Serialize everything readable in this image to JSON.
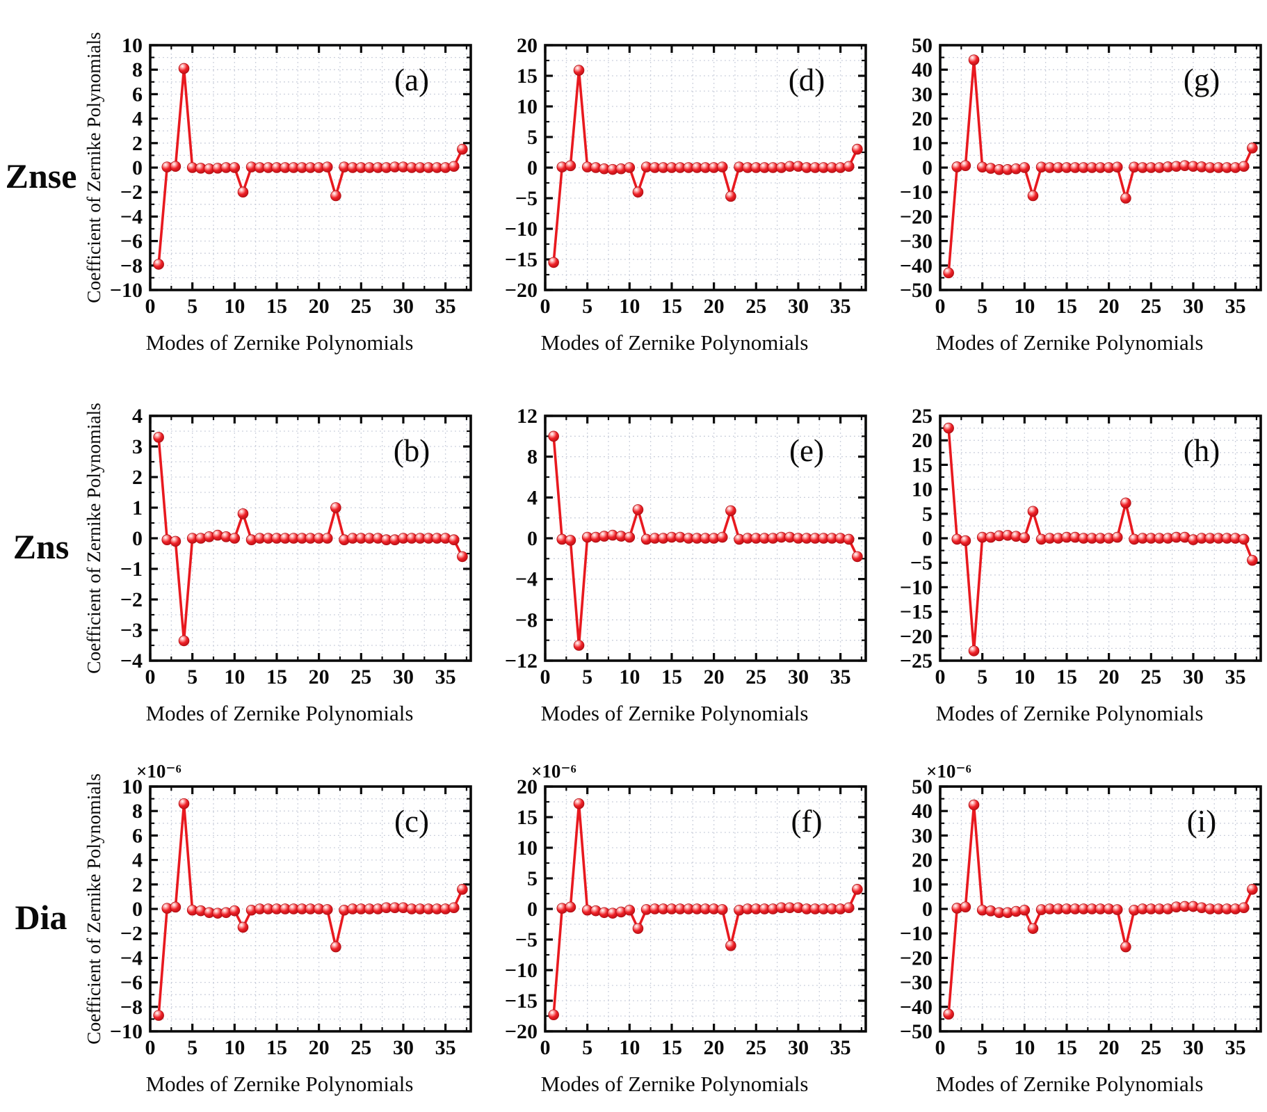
{
  "figure": {
    "xlabel": "Modes of Zernike Polynomials",
    "ylabel": "Coefficient of Zernike Polynomials",
    "row_labels": [
      "Znse",
      "Zns",
      "Dia"
    ],
    "line_color": "#e8191f",
    "grid_color": "#c7ccd9",
    "axis_color": "#0a0a0a",
    "x_axis": {
      "lim": [
        0,
        38
      ],
      "ticks": [
        0,
        5,
        10,
        15,
        20,
        25,
        30,
        35
      ],
      "minor_step": 2.5
    }
  },
  "chart_data": [
    {
      "id": "a",
      "type": "line",
      "row": "Znse",
      "letter": "(a)",
      "ylim": [
        -10,
        10
      ],
      "ytick": 2,
      "multiplier": null,
      "show_ylabel": true,
      "x_start": 1,
      "values": [
        -7.9,
        0.05,
        0.1,
        8.1,
        0,
        -0.05,
        -0.1,
        -0.05,
        0,
        0,
        -2.0,
        0.05,
        0,
        0,
        0,
        0,
        0,
        0,
        0,
        0,
        0.05,
        -2.3,
        0.05,
        0,
        0,
        0,
        0,
        0,
        0.05,
        0.05,
        0,
        0,
        0,
        0,
        0,
        0.1,
        1.5
      ]
    },
    {
      "id": "d",
      "type": "line",
      "row": "Znse",
      "letter": "(d)",
      "ylim": [
        -20,
        20
      ],
      "ytick": 5,
      "multiplier": null,
      "show_ylabel": false,
      "x_start": 1,
      "values": [
        -15.5,
        0.1,
        0.3,
        15.9,
        0.1,
        0,
        -0.2,
        -0.3,
        -0.2,
        0,
        -4.0,
        0.1,
        0,
        0,
        0,
        0,
        0,
        0,
        0,
        0,
        0.1,
        -4.7,
        0.1,
        0,
        0,
        0,
        0,
        0,
        0.2,
        0.2,
        0,
        0,
        0,
        0,
        0,
        0.2,
        3.0
      ]
    },
    {
      "id": "g",
      "type": "line",
      "row": "Znse",
      "letter": "(g)",
      "ylim": [
        -50,
        50
      ],
      "ytick": 10,
      "multiplier": null,
      "show_ylabel": false,
      "x_start": 1,
      "values": [
        -43,
        0.3,
        0.8,
        44,
        0.2,
        -0.3,
        -0.8,
        -0.8,
        -0.5,
        0,
        -11.5,
        0.2,
        0,
        0,
        0,
        0,
        0,
        0,
        0,
        0,
        0.2,
        -12.5,
        0.2,
        0,
        0,
        0,
        0.3,
        0.5,
        0.8,
        0.5,
        0.3,
        0,
        0,
        0,
        0,
        0.5,
        8
      ]
    },
    {
      "id": "b",
      "type": "line",
      "row": "Zns",
      "letter": "(b)",
      "ylim": [
        -4,
        4
      ],
      "ytick": 1,
      "multiplier": null,
      "show_ylabel": true,
      "x_start": 1,
      "values": [
        3.3,
        -0.05,
        -0.1,
        -3.35,
        0,
        0,
        0.05,
        0.1,
        0.05,
        0,
        0.8,
        -0.05,
        0,
        0,
        0,
        0,
        0,
        0,
        0,
        0,
        0,
        1.0,
        -0.05,
        0,
        0,
        0,
        0,
        -0.05,
        -0.05,
        0,
        0,
        0,
        0,
        0,
        0,
        -0.05,
        -0.6
      ]
    },
    {
      "id": "e",
      "type": "line",
      "row": "Zns",
      "letter": "(e)",
      "ylim": [
        -12,
        12
      ],
      "ytick": 4,
      "multiplier": null,
      "show_ylabel": false,
      "x_start": 1,
      "values": [
        10.0,
        -0.1,
        -0.2,
        -10.5,
        0.1,
        0.1,
        0.2,
        0.3,
        0.2,
        0.1,
        2.8,
        -0.1,
        0,
        0,
        0.1,
        0.1,
        0,
        0,
        0,
        0,
        0.1,
        2.7,
        -0.1,
        0,
        0,
        0,
        0,
        0.1,
        0.1,
        0,
        0,
        0,
        0,
        0,
        0,
        -0.1,
        -1.8
      ]
    },
    {
      "id": "h",
      "type": "line",
      "row": "Zns",
      "letter": "(h)",
      "ylim": [
        -25,
        25
      ],
      "ytick": 5,
      "multiplier": null,
      "show_ylabel": false,
      "x_start": 1,
      "values": [
        22.5,
        -0.2,
        -0.5,
        -23,
        0.2,
        0.2,
        0.5,
        0.6,
        0.4,
        0.1,
        5.5,
        -0.2,
        0,
        0,
        0.2,
        0.2,
        0,
        0,
        0,
        0,
        0.2,
        7.2,
        -0.2,
        0,
        0,
        0,
        0,
        0.2,
        0.2,
        -0.3,
        0,
        0,
        0,
        0,
        0,
        -0.2,
        -4.5
      ]
    },
    {
      "id": "c",
      "type": "line",
      "row": "Dia",
      "letter": "(c)",
      "ylim": [
        -10,
        10
      ],
      "ytick": 2,
      "multiplier": "×10⁻⁶",
      "show_ylabel": true,
      "x_start": 1,
      "values": [
        -8.7,
        0.05,
        0.15,
        8.6,
        -0.1,
        -0.15,
        -0.3,
        -0.35,
        -0.3,
        -0.15,
        -1.5,
        -0.1,
        0,
        0,
        0,
        0,
        0,
        0,
        0,
        0,
        -0.05,
        -3.1,
        -0.1,
        0,
        0,
        0,
        0,
        0.1,
        0.1,
        0.1,
        0,
        0,
        0,
        0,
        0,
        0.1,
        1.6
      ]
    },
    {
      "id": "f",
      "type": "line",
      "row": "Dia",
      "letter": "(f)",
      "ylim": [
        -20,
        20
      ],
      "ytick": 5,
      "multiplier": "×10⁻⁶",
      "show_ylabel": false,
      "x_start": 1,
      "values": [
        -17.3,
        0.1,
        0.3,
        17.2,
        -0.2,
        -0.3,
        -0.6,
        -0.7,
        -0.5,
        -0.2,
        -3.2,
        -0.1,
        0,
        0,
        0,
        0,
        0,
        0,
        0,
        0,
        -0.1,
        -6.0,
        -0.2,
        0,
        0,
        0,
        0,
        0.2,
        0.2,
        0.2,
        0,
        0,
        0,
        0,
        0,
        0.2,
        3.2
      ]
    },
    {
      "id": "i",
      "type": "line",
      "row": "Dia",
      "letter": "(i)",
      "ylim": [
        -50,
        50
      ],
      "ytick": 10,
      "multiplier": "×10⁻⁶",
      "show_ylabel": false,
      "x_start": 1,
      "values": [
        -43,
        0.3,
        0.8,
        42.5,
        -0.5,
        -0.8,
        -1.5,
        -1.5,
        -1.0,
        -0.5,
        -8.0,
        -0.3,
        0,
        0,
        0,
        0,
        0,
        0,
        0,
        0,
        -0.3,
        -15.5,
        -0.5,
        0,
        0,
        0,
        0,
        0.8,
        1.0,
        1.0,
        0.5,
        0,
        0,
        0,
        0,
        0.5,
        8.0
      ]
    }
  ]
}
